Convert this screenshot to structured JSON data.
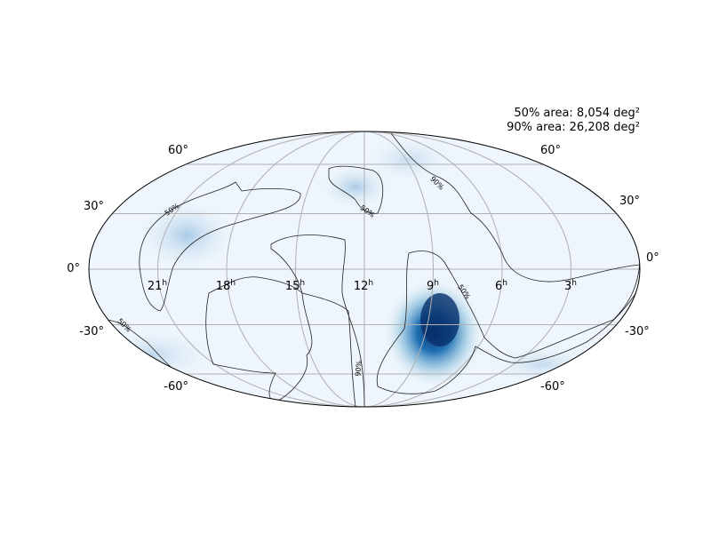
{
  "annotations": [
    "50% area: 8,054 deg²",
    "90% area: 26,208 deg²"
  ],
  "lat_labels_left": [
    "60°",
    "30°",
    "0°",
    "-30°",
    "-60°"
  ],
  "lat_labels_right": [
    "60°",
    "30°",
    "0°",
    "-30°",
    "-60°"
  ],
  "ra_labels": [
    {
      "number": "21",
      "superscript": "h"
    },
    {
      "number": "18",
      "superscript": "h"
    },
    {
      "number": "15",
      "superscript": "h"
    },
    {
      "number": "12",
      "superscript": "h"
    },
    {
      "number": "9",
      "superscript": "h"
    },
    {
      "number": "6",
      "superscript": "h"
    },
    {
      "number": "3",
      "superscript": "h"
    }
  ],
  "contour_labels": [
    "50%",
    "90%",
    "50%",
    "50%",
    "50%",
    "90%"
  ]
}
